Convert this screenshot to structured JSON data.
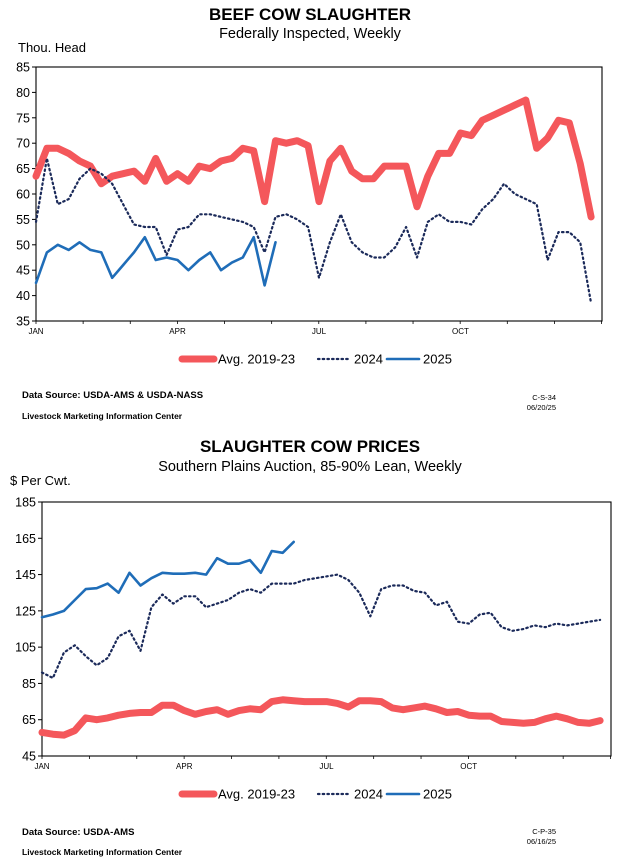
{
  "chart_data": [
    {
      "type": "line",
      "title": "BEEF COW SLAUGHTER",
      "subtitle": "Federally Inspected, Weekly",
      "ylabel": "Thou. Head",
      "ylim": [
        35,
        85
      ],
      "yticks": [
        35,
        40,
        45,
        50,
        55,
        60,
        65,
        70,
        75,
        80,
        85
      ],
      "x_unit": "week",
      "xlim": [
        1,
        53
      ],
      "xticks": [
        {
          "label": "JAN",
          "week": 1
        },
        {
          "label": "APR",
          "week": 14
        },
        {
          "label": "JUL",
          "week": 27
        },
        {
          "label": "OCT",
          "week": 40
        }
      ],
      "grid": false,
      "legend": "bottom",
      "source": "Data Source:  USDA-AMS & USDA-NASS",
      "center": "Livestock Marketing Information Center",
      "code": "C-S-34",
      "date": "06/20/25",
      "series": [
        {
          "name": "Avg. 2019-23",
          "color": "#f4575b",
          "style": "thick",
          "values": [
            63.5,
            69,
            69,
            68,
            66.5,
            65.5,
            62,
            63.5,
            64,
            64.5,
            62.5,
            67,
            62.5,
            64,
            62.5,
            65.5,
            65,
            66.5,
            67,
            69,
            68.5,
            58.5,
            70.5,
            70,
            70.5,
            69.5,
            58.5,
            66.5,
            69,
            64.5,
            63,
            63,
            65.5,
            65.5,
            65.5,
            57.5,
            63.5,
            68,
            68,
            72,
            71.5,
            74.5,
            75.5,
            76.5,
            77.5,
            78.5,
            69,
            71,
            74.5,
            74,
            66,
            55.5
          ]
        },
        {
          "name": "2024",
          "color": "#1b2a5a",
          "style": "dotted",
          "values": [
            54.5,
            67,
            58,
            59,
            63,
            65,
            64,
            62,
            58,
            54,
            53.5,
            53.5,
            48,
            53,
            53.5,
            56,
            56,
            55.5,
            55,
            54.5,
            53.5,
            48.5,
            55.5,
            56,
            55,
            53.5,
            43.5,
            50.5,
            56,
            50.5,
            48.5,
            47.5,
            47.5,
            49.5,
            53.5,
            47.5,
            54.5,
            56,
            54.5,
            54.5,
            54,
            57,
            59,
            62,
            60,
            59,
            58,
            47,
            52.5,
            52.5,
            50.5,
            38.5
          ]
        },
        {
          "name": "2025",
          "color": "#1f6db8",
          "style": "solid",
          "values": [
            42.5,
            48.5,
            50,
            49,
            50.5,
            49,
            48.5,
            43.5,
            46,
            48.5,
            51.5,
            47,
            47.5,
            47,
            45,
            47,
            48.5,
            45,
            46.5,
            47.5,
            51.5,
            42,
            50.5
          ]
        }
      ]
    },
    {
      "type": "line",
      "title": "SLAUGHTER COW PRICES",
      "subtitle": "Southern Plains Auction, 85-90% Lean, Weekly",
      "ylabel": "$ Per Cwt.",
      "ylim": [
        45,
        185
      ],
      "yticks": [
        45,
        65,
        85,
        105,
        125,
        145,
        165,
        185
      ],
      "x_unit": "week",
      "xlim": [
        1,
        53
      ],
      "xticks": [
        {
          "label": "JAN",
          "week": 1
        },
        {
          "label": "APR",
          "week": 14
        },
        {
          "label": "JUL",
          "week": 27
        },
        {
          "label": "OCT",
          "week": 40
        }
      ],
      "grid": false,
      "legend": "bottom",
      "source": "Data Source:  USDA-AMS",
      "center": "Livestock Marketing Information Center",
      "code": "C-P-35",
      "date": "06/16/25",
      "series": [
        {
          "name": "Avg. 2019-23",
          "color": "#f4575b",
          "style": "thick",
          "values": [
            58,
            57,
            56.5,
            59,
            66,
            65,
            66,
            67.5,
            68.5,
            69,
            69,
            73,
            73,
            70,
            68,
            69.5,
            70.5,
            68,
            70,
            71,
            70.5,
            75,
            76,
            75.5,
            75,
            75,
            75,
            74,
            72,
            75.5,
            75.5,
            75,
            71.5,
            70.5,
            71.5,
            72.5,
            71,
            69,
            69.5,
            67.5,
            67,
            67,
            64,
            63.5,
            63,
            63.5,
            65.5,
            67,
            65.5,
            63.5,
            63,
            64.5
          ]
        },
        {
          "name": "2024",
          "color": "#1b2a5a",
          "style": "dotted",
          "values": [
            91,
            88,
            102,
            106,
            100,
            95,
            99,
            111,
            114,
            103,
            127,
            134,
            129,
            133,
            133,
            127,
            129,
            131,
            135,
            137,
            135,
            140,
            140,
            140,
            142,
            143,
            144,
            145,
            142,
            135,
            122,
            137,
            139,
            139,
            136,
            135,
            128,
            130,
            119,
            118,
            123,
            124,
            116,
            114,
            115,
            117,
            116,
            118,
            117,
            118,
            119,
            120
          ]
        },
        {
          "name": "2025",
          "color": "#1f6db8",
          "style": "solid",
          "values": [
            121.5,
            123,
            125,
            131,
            137,
            137.5,
            140,
            135,
            146,
            139,
            143,
            146,
            145.5,
            145.5,
            146,
            145,
            154,
            151,
            151,
            153,
            146,
            158,
            157,
            163
          ]
        }
      ]
    }
  ]
}
